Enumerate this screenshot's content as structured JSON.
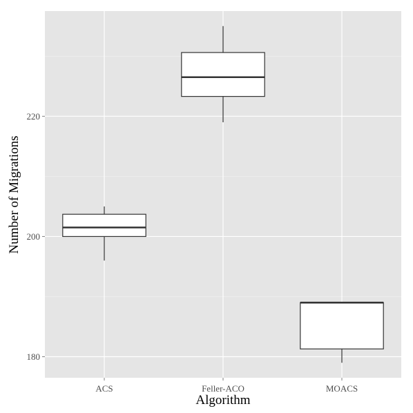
{
  "chart_data": {
    "type": "boxplot",
    "xlabel": "Algorithm",
    "ylabel": "Number of Migrations",
    "categories": [
      "ACS",
      "Feller-ACO",
      "MOACS"
    ],
    "ylim": [
      176.5,
      237.5
    ],
    "yticks": [
      180,
      200,
      220
    ],
    "ytick_labels": [
      "180",
      "200",
      "220"
    ],
    "grid": true,
    "boxes": [
      {
        "category": "ACS",
        "min": 196,
        "q1": 200,
        "median": 201.5,
        "q3": 203.7,
        "max": 205
      },
      {
        "category": "Feller-ACO",
        "min": 219,
        "q1": 223.3,
        "median": 226.5,
        "q3": 230.6,
        "max": 235
      },
      {
        "category": "MOACS",
        "min": 179,
        "q1": 181.3,
        "median": 189,
        "q3": 189,
        "max": 189
      }
    ],
    "colors": {
      "panel_background": "#e5e5e5",
      "grid_major": "#ffffff",
      "grid_minor": "#f2f2f2",
      "box_fill": "#ffffff",
      "box_stroke": "#333333",
      "tick_text": "#4d4d4d"
    }
  }
}
